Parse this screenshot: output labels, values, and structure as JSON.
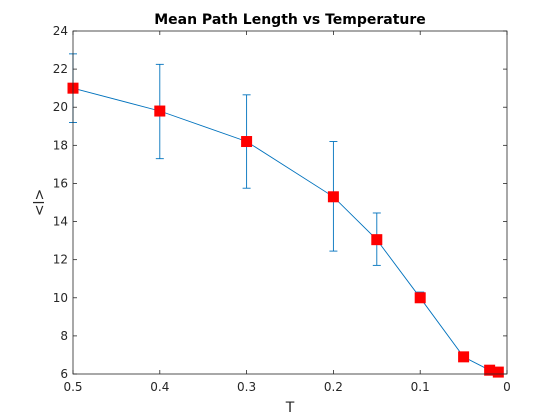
{
  "chart_data": {
    "type": "line",
    "title": "Mean Path Length vs Temperature",
    "xlabel": "T",
    "ylabel": "<l>",
    "xlim": [
      0.5,
      0
    ],
    "ylim": [
      6,
      24
    ],
    "x_reversed": true,
    "xticks": [
      "0.5",
      "0.4",
      "0.3",
      "0.2",
      "0.1",
      "0"
    ],
    "yticks": [
      "6",
      "8",
      "10",
      "12",
      "14",
      "16",
      "18",
      "20",
      "22",
      "24"
    ],
    "grid": false,
    "series": [
      {
        "x": [
          0.5,
          0.4,
          0.3,
          0.2,
          0.15,
          0.1,
          0.05,
          0.02,
          0.01
        ],
        "y": [
          21.0,
          19.8,
          18.2,
          15.3,
          13.05,
          10.0,
          6.9,
          6.2,
          6.1
        ],
        "y_err_low": [
          19.2,
          17.3,
          15.75,
          12.45,
          11.7,
          9.75,
          6.75,
          6.05,
          6.0
        ],
        "y_err_high": [
          22.8,
          22.25,
          20.65,
          18.2,
          14.45,
          10.3,
          7.05,
          6.35,
          6.2
        ],
        "line_color": "#0072bd",
        "marker": "square",
        "marker_color": "#ff0000"
      }
    ]
  }
}
